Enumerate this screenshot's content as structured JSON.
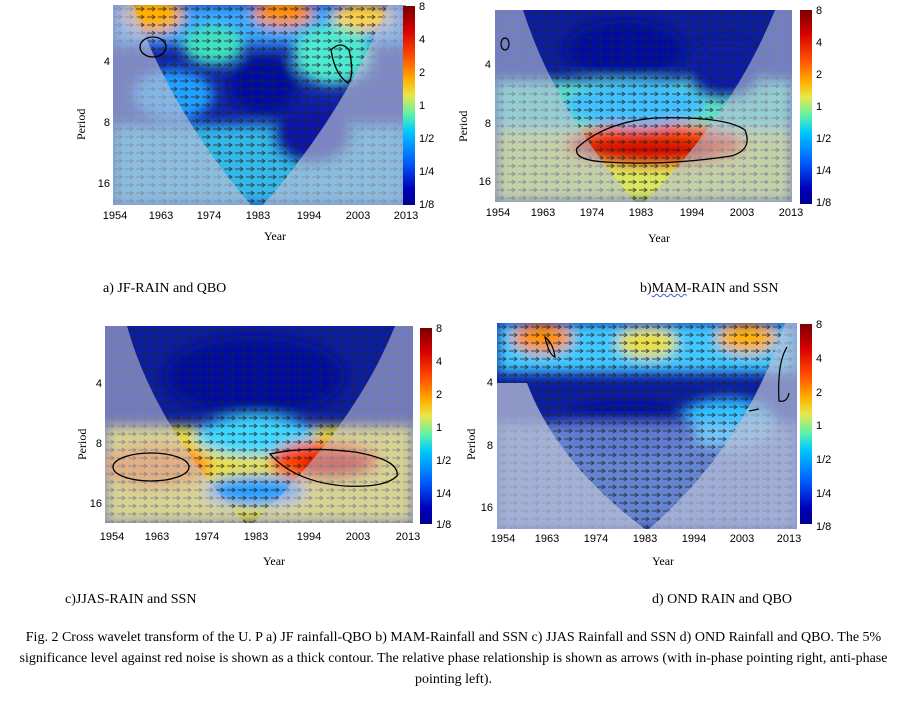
{
  "panels": [
    {
      "id": "a",
      "caption": "a) JF-RAIN and QBO",
      "xlabel": "Year",
      "ylabel": "Period",
      "xticks": [
        "1954",
        "1963",
        "1974",
        "1983",
        "1994",
        "2003",
        "2013"
      ],
      "yticks": [
        "4",
        "8",
        "16"
      ],
      "cbar": [
        "8",
        "4",
        "2",
        "1",
        "1/2",
        "1/4",
        "1/8"
      ]
    },
    {
      "id": "b",
      "caption_prefix": "b)",
      "caption_word": "MAM",
      "caption_rest": "-RAIN and SSN",
      "xlabel": "Year",
      "ylabel": "Period",
      "xticks": [
        "1954",
        "1963",
        "1974",
        "1983",
        "1994",
        "2003",
        "2013"
      ],
      "yticks": [
        "4",
        "8",
        "16"
      ],
      "cbar": [
        "8",
        "4",
        "2",
        "1",
        "1/2",
        "1/4",
        "1/8"
      ]
    },
    {
      "id": "c",
      "caption": "c)JJAS-RAIN and SSN",
      "xlabel": "Year",
      "ylabel": "Period",
      "xticks": [
        "1954",
        "1963",
        "1974",
        "1983",
        "1994",
        "2003",
        "2013"
      ],
      "yticks": [
        "4",
        "8",
        "16"
      ],
      "cbar": [
        "8",
        "4",
        "2",
        "1",
        "1/2",
        "1/4",
        "1/8"
      ]
    },
    {
      "id": "d",
      "caption": "d) OND RAIN and QBO",
      "xlabel": "Year",
      "ylabel": "Period",
      "xticks": [
        "1954",
        "1963",
        "1974",
        "1983",
        "1994",
        "2003",
        "2013"
      ],
      "yticks": [
        "4",
        "8",
        "16"
      ],
      "cbar": [
        "8",
        "4",
        "2",
        "1",
        "1/2",
        "1/4",
        "1/8"
      ]
    }
  ],
  "figure_caption": "Fig. 2 Cross wavelet transform of the U. P a) JF rainfall-QBO b) MAM-Rainfall and SSN c) JJAS Rainfall and SSN d) OND Rainfall and QBO. The 5% significance level against red noise is shown as a thick contour. The relative phase relationship is shown as arrows (with in-phase pointing right, anti-phase pointing left)."
}
